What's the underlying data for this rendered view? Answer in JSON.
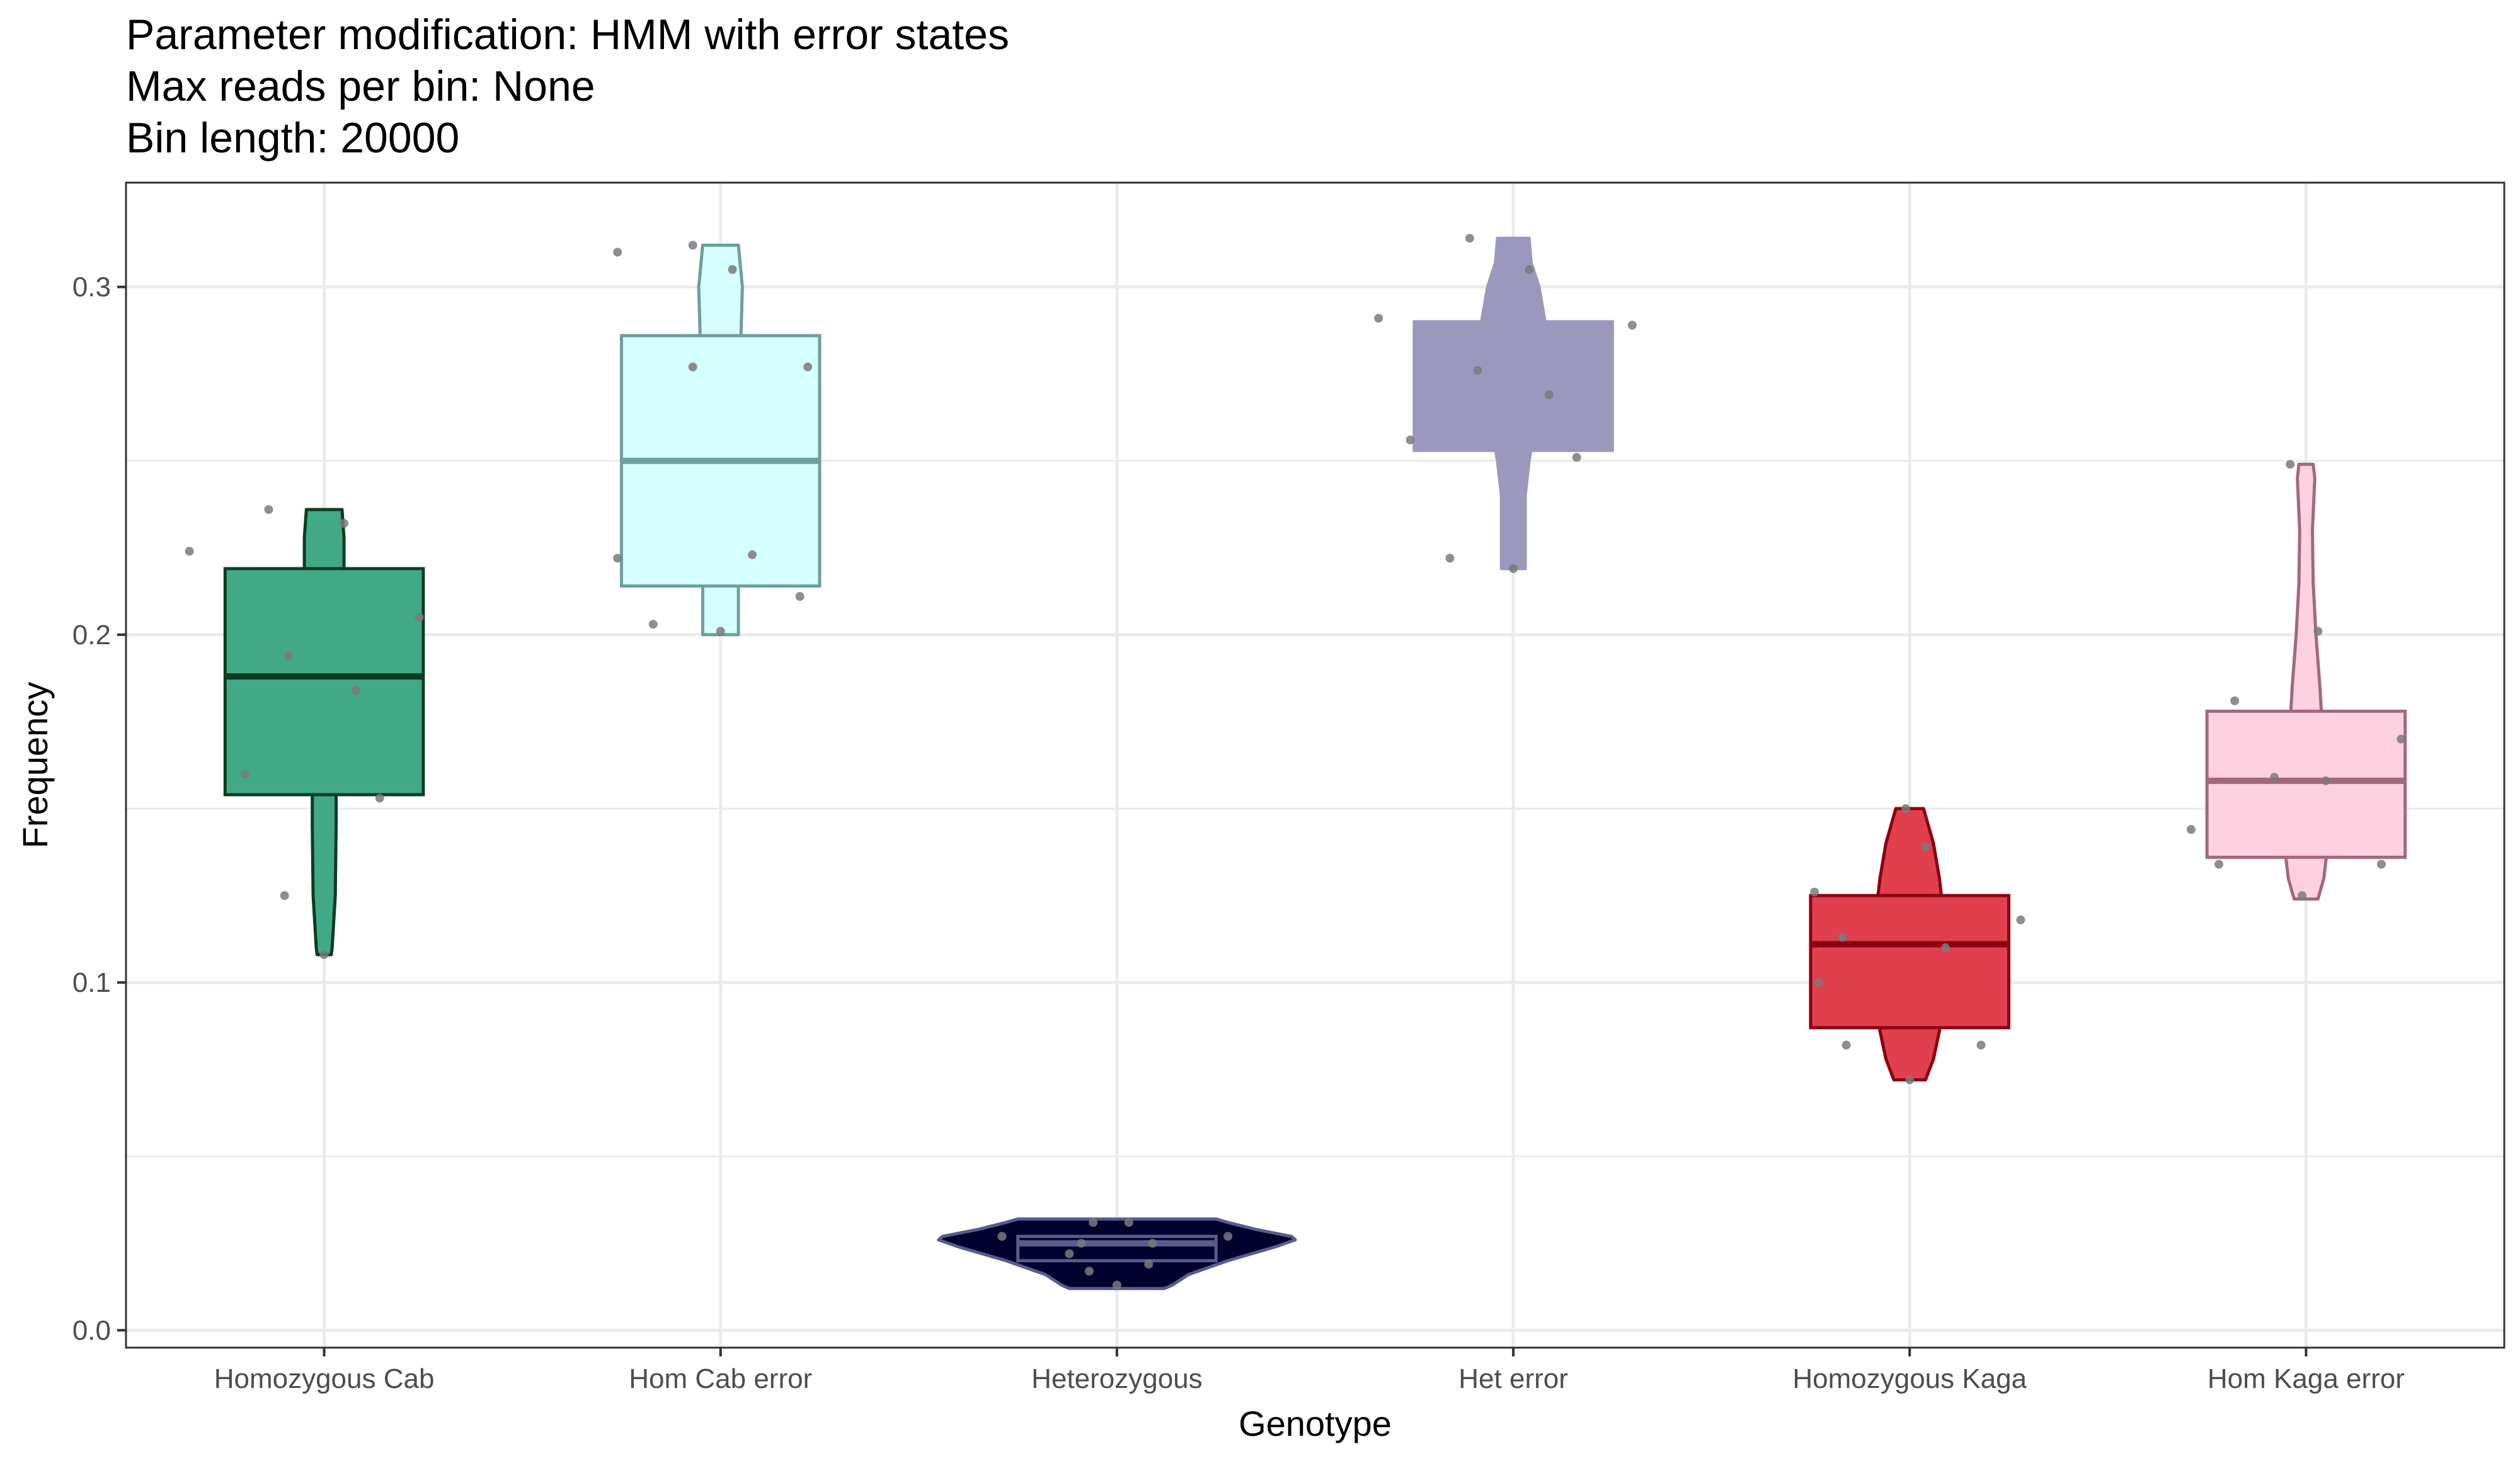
{
  "chart_data": {
    "type": "violin",
    "title_lines": [
      "Parameter modification: HMM with error states",
      "Max reads per bin: None",
      "Bin length: 20000"
    ],
    "xlabel": "Genotype",
    "ylabel": "Frequency",
    "ylim": [
      -0.005,
      0.33
    ],
    "y_ticks": [
      0.0,
      0.1,
      0.2,
      0.3
    ],
    "y_tick_labels": [
      "0.0",
      "0.1",
      "0.2",
      "0.3"
    ],
    "grid": true,
    "legend": "none",
    "categories": [
      "Homozygous Cab",
      "Hom Cab error",
      "Heterozygous",
      "Het error",
      "Homozygous Kaga",
      "Hom Kaga error"
    ],
    "series": [
      {
        "category": "Homozygous Cab",
        "fill": "#42A987",
        "outline": "#0B3D22",
        "violin": {
          "top": 0.236,
          "bottom": 0.108,
          "profile": [
            [
              0.236,
              0.045
            ],
            [
              0.228,
              0.05
            ],
            [
              0.219,
              0.05
            ],
            [
              0.2,
              0.045
            ],
            [
              0.18,
              0.04
            ],
            [
              0.155,
              0.03
            ],
            [
              0.145,
              0.03
            ],
            [
              0.125,
              0.028
            ],
            [
              0.11,
              0.02
            ],
            [
              0.108,
              0.018
            ]
          ]
        },
        "box": {
          "q1": 0.154,
          "median": 0.188,
          "q3": 0.219
        },
        "points": [
          [
            -0.34,
            0.224
          ],
          [
            -0.14,
            0.236
          ],
          [
            0.05,
            0.232
          ],
          [
            0.24,
            0.205
          ],
          [
            -0.09,
            0.194
          ],
          [
            0.08,
            0.184
          ],
          [
            -0.2,
            0.16
          ],
          [
            0.14,
            0.153
          ],
          [
            -0.1,
            0.125
          ],
          [
            0.0,
            0.108
          ]
        ]
      },
      {
        "category": "Hom Cab error",
        "fill": "#D6FFFF",
        "outline": "#6F9E9E",
        "violin": {
          "top": 0.312,
          "bottom": 0.2,
          "profile": [
            [
              0.312,
              0.045
            ],
            [
              0.3,
              0.055
            ],
            [
              0.28,
              0.05
            ],
            [
              0.26,
              0.045
            ],
            [
              0.24,
              0.045
            ],
            [
              0.22,
              0.045
            ],
            [
              0.21,
              0.045
            ],
            [
              0.2,
              0.045
            ]
          ]
        },
        "box": {
          "q1": 0.214,
          "median": 0.25,
          "q3": 0.286
        },
        "points": [
          [
            -0.26,
            0.31
          ],
          [
            -0.07,
            0.312
          ],
          [
            0.03,
            0.305
          ],
          [
            -0.07,
            0.277
          ],
          [
            0.22,
            0.277
          ],
          [
            -0.26,
            0.222
          ],
          [
            0.08,
            0.223
          ],
          [
            0.2,
            0.211
          ],
          [
            -0.17,
            0.203
          ],
          [
            0.0,
            0.201
          ]
        ]
      },
      {
        "category": "Heterozygous",
        "fill": "#03022E",
        "outline": "#5A5C8C",
        "violin": {
          "top": 0.032,
          "bottom": 0.012,
          "profile": [
            [
              0.032,
              0.25
            ],
            [
              0.031,
              0.28
            ],
            [
              0.029,
              0.35
            ],
            [
              0.027,
              0.44
            ],
            [
              0.026,
              0.45
            ],
            [
              0.024,
              0.4
            ],
            [
              0.02,
              0.28
            ],
            [
              0.016,
              0.18
            ],
            [
              0.013,
              0.14
            ],
            [
              0.012,
              0.12
            ]
          ]
        },
        "box": {
          "q1": 0.02,
          "median": 0.025,
          "q3": 0.027
        },
        "points": [
          [
            -0.29,
            0.027
          ],
          [
            -0.06,
            0.031
          ],
          [
            0.03,
            0.031
          ],
          [
            0.28,
            0.027
          ],
          [
            -0.09,
            0.025
          ],
          [
            0.09,
            0.025
          ],
          [
            -0.12,
            0.022
          ],
          [
            0.08,
            0.019
          ],
          [
            -0.07,
            0.017
          ],
          [
            0.0,
            0.013
          ]
        ]
      },
      {
        "category": "Het error",
        "fill": "#9A99BD",
        "outline": "#9A99BD",
        "violin": {
          "top": 0.314,
          "bottom": 0.219,
          "profile": [
            [
              0.314,
              0.04
            ],
            [
              0.307,
              0.045
            ],
            [
              0.3,
              0.065
            ],
            [
              0.29,
              0.08
            ],
            [
              0.28,
              0.065
            ],
            [
              0.27,
              0.06
            ],
            [
              0.26,
              0.055
            ],
            [
              0.25,
              0.04
            ],
            [
              0.24,
              0.03
            ],
            [
              0.23,
              0.03
            ],
            [
              0.22,
              0.03
            ],
            [
              0.219,
              0.03
            ]
          ]
        },
        "box": {
          "q1": 0.253,
          "median": 0.272,
          "q3": 0.29
        },
        "points": [
          [
            -0.34,
            0.291
          ],
          [
            -0.11,
            0.314
          ],
          [
            0.04,
            0.305
          ],
          [
            0.3,
            0.289
          ],
          [
            -0.09,
            0.276
          ],
          [
            0.09,
            0.269
          ],
          [
            -0.26,
            0.256
          ],
          [
            0.16,
            0.251
          ],
          [
            -0.16,
            0.222
          ],
          [
            0.0,
            0.219
          ]
        ]
      },
      {
        "category": "Homozygous Kaga",
        "fill": "#E03F4E",
        "outline": "#8A0010",
        "violin": {
          "top": 0.15,
          "bottom": 0.072,
          "profile": [
            [
              0.15,
              0.035
            ],
            [
              0.14,
              0.06
            ],
            [
              0.13,
              0.075
            ],
            [
              0.125,
              0.08
            ],
            [
              0.11,
              0.08
            ],
            [
              0.1,
              0.085
            ],
            [
              0.09,
              0.08
            ],
            [
              0.086,
              0.075
            ],
            [
              0.078,
              0.06
            ],
            [
              0.072,
              0.04
            ]
          ]
        },
        "box": {
          "q1": 0.087,
          "median": 0.111,
          "q3": 0.125
        },
        "points": [
          [
            -0.24,
            0.126
          ],
          [
            -0.01,
            0.15
          ],
          [
            0.04,
            0.139
          ],
          [
            0.28,
            0.118
          ],
          [
            -0.17,
            0.113
          ],
          [
            0.09,
            0.11
          ],
          [
            -0.23,
            0.1
          ],
          [
            -0.16,
            0.082
          ],
          [
            0.18,
            0.082
          ],
          [
            0.0,
            0.072
          ]
        ]
      },
      {
        "category": "Hom Kaga error",
        "fill": "#FDD1E0",
        "outline": "#A26880",
        "violin": {
          "top": 0.249,
          "bottom": 0.124,
          "profile": [
            [
              0.249,
              0.018
            ],
            [
              0.245,
              0.022
            ],
            [
              0.23,
              0.016
            ],
            [
              0.215,
              0.018
            ],
            [
              0.2,
              0.025
            ],
            [
              0.185,
              0.035
            ],
            [
              0.175,
              0.04
            ],
            [
              0.16,
              0.045
            ],
            [
              0.15,
              0.05
            ],
            [
              0.14,
              0.055
            ],
            [
              0.135,
              0.05
            ],
            [
              0.13,
              0.045
            ],
            [
              0.124,
              0.03
            ]
          ]
        },
        "box": {
          "q1": 0.136,
          "median": 0.158,
          "q3": 0.178
        },
        "points": [
          [
            -0.04,
            0.249
          ],
          [
            0.03,
            0.201
          ],
          [
            -0.18,
            0.181
          ],
          [
            0.24,
            0.17
          ],
          [
            -0.08,
            0.159
          ],
          [
            0.05,
            0.158
          ],
          [
            -0.29,
            0.144
          ],
          [
            -0.22,
            0.134
          ],
          [
            0.19,
            0.134
          ],
          [
            -0.01,
            0.125
          ]
        ]
      }
    ]
  }
}
